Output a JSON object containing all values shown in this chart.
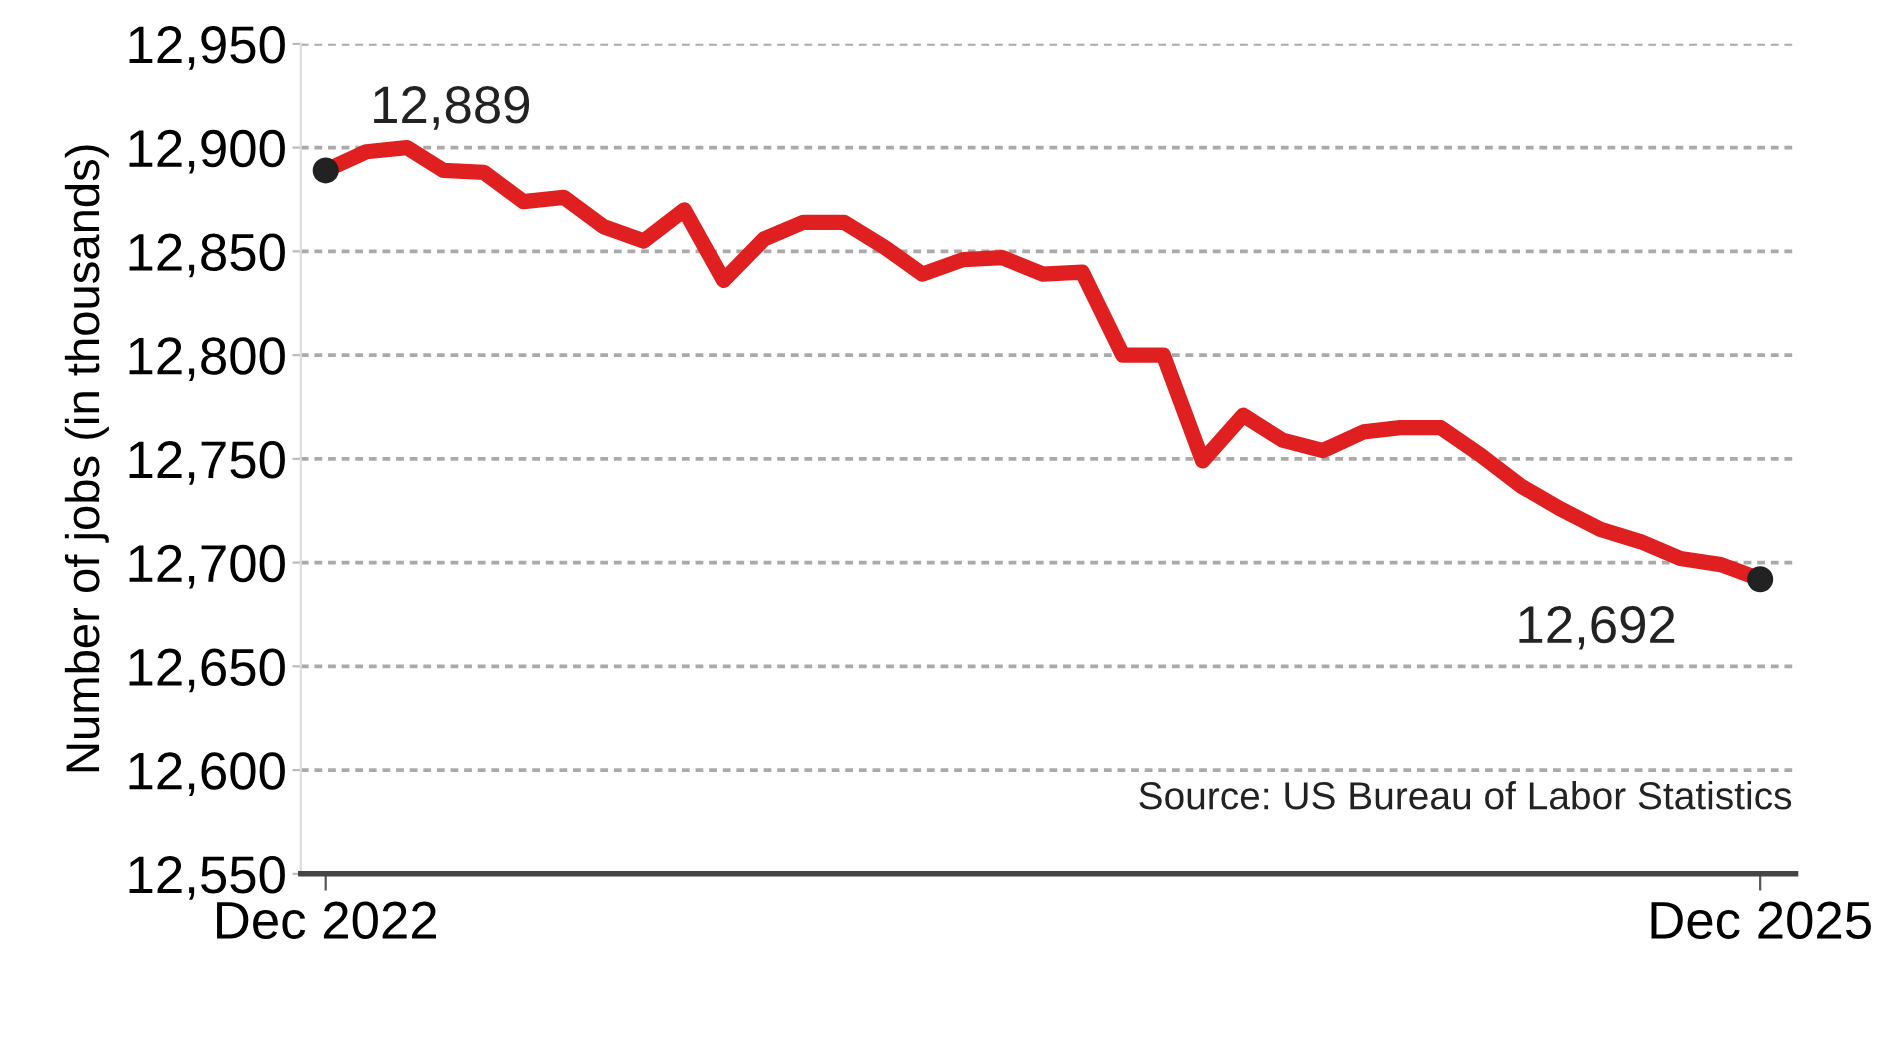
{
  "chart_data": {
    "type": "line",
    "ylabel": "Number of jobs (in thousands)",
    "x": [
      "2022-12",
      "2023-01",
      "2023-02",
      "2023-03",
      "2023-04",
      "2023-05",
      "2023-06",
      "2023-07",
      "2023-08",
      "2023-09",
      "2023-10",
      "2023-11",
      "2023-12",
      "2024-01",
      "2024-02",
      "2024-03",
      "2024-04",
      "2024-05",
      "2024-06",
      "2024-07",
      "2024-08",
      "2024-09",
      "2024-10",
      "2024-11",
      "2024-12",
      "2025-01",
      "2025-02",
      "2025-03",
      "2025-04",
      "2025-05",
      "2025-06",
      "2025-07",
      "2025-08",
      "2025-09",
      "2025-10",
      "2025-11",
      "2025-12"
    ],
    "series": [
      {
        "color": "#e02020",
        "values": [
          12889,
          12898,
          12900,
          12889,
          12888,
          12874,
          12876,
          12862,
          12855,
          12870,
          12836,
          12856,
          12864,
          12864,
          12852,
          12839,
          12846,
          12847,
          12839,
          12840,
          12800,
          12800,
          12749,
          12771,
          12759,
          12754,
          12763,
          12765,
          12765,
          12752,
          12737,
          12726,
          12716,
          12710,
          12702,
          12699,
          12692
        ]
      },
      {
        "type": "scatter",
        "color": "#222222",
        "x": [
          "2022-12",
          "2025-12"
        ],
        "values": [
          12889,
          12692
        ]
      }
    ],
    "ylim": [
      12550,
      12950
    ],
    "yticks": [
      {
        "value": 12550,
        "label": "12,550"
      },
      {
        "value": 12600,
        "label": "12,600"
      },
      {
        "value": 12650,
        "label": "12,650"
      },
      {
        "value": 12700,
        "label": "12,700"
      },
      {
        "value": 12750,
        "label": "12,750"
      },
      {
        "value": 12800,
        "label": "12,800"
      },
      {
        "value": 12850,
        "label": "12,850"
      },
      {
        "value": 12900,
        "label": "12,900"
      },
      {
        "value": 12950,
        "label": "12,950"
      }
    ],
    "xlim": [
      "2022-11-12",
      "2025-12-28"
    ],
    "xticks": [
      {
        "value": "2022-12",
        "label": "Dec 2022"
      },
      {
        "value": "2025-12",
        "label": "Dec 2025"
      }
    ],
    "grid": "y",
    "annotations": [
      {
        "text": "12,889",
        "x": "2022-12",
        "y": 12889
      },
      {
        "text": "12,692",
        "x": "2025-12",
        "y": 12692
      },
      "Source: US Bureau of Labor Statistics"
    ]
  }
}
